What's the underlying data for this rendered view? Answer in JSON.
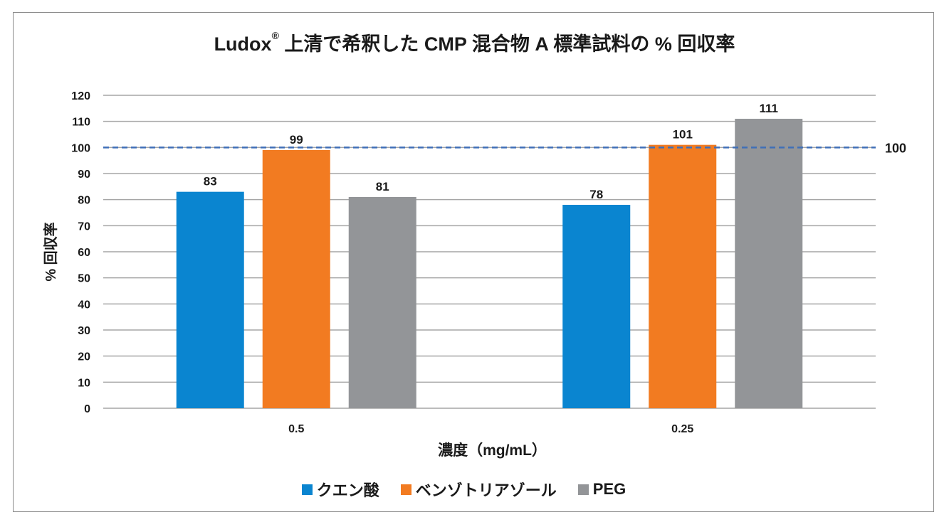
{
  "chart_data": {
    "type": "bar",
    "title_main": "Ludox",
    "title_mark": "®",
    "title_rest": " 上清で希釈した CMP 混合物 A 標準試料の % 回収率",
    "xlabel": "濃度（mg/mL）",
    "ylabel": "% 回収率",
    "ylim": [
      0,
      120
    ],
    "y_ticks": [
      0,
      10,
      20,
      30,
      40,
      50,
      60,
      70,
      80,
      90,
      100,
      110,
      120
    ],
    "categories": [
      "0.5",
      "0.25"
    ],
    "series": [
      {
        "name": "クエン酸",
        "color": "#0a85d0",
        "values": [
          83,
          78
        ]
      },
      {
        "name": "ベンゾトリアゾール",
        "color": "#f27b21",
        "values": [
          99,
          101
        ]
      },
      {
        "name": "PEG",
        "color": "#939598",
        "values": [
          81,
          111
        ]
      }
    ],
    "reference_line": {
      "value": 100,
      "label": "100",
      "color": "#3f6fb8",
      "style": "dashed"
    },
    "grid": true,
    "legend_position": "bottom"
  }
}
